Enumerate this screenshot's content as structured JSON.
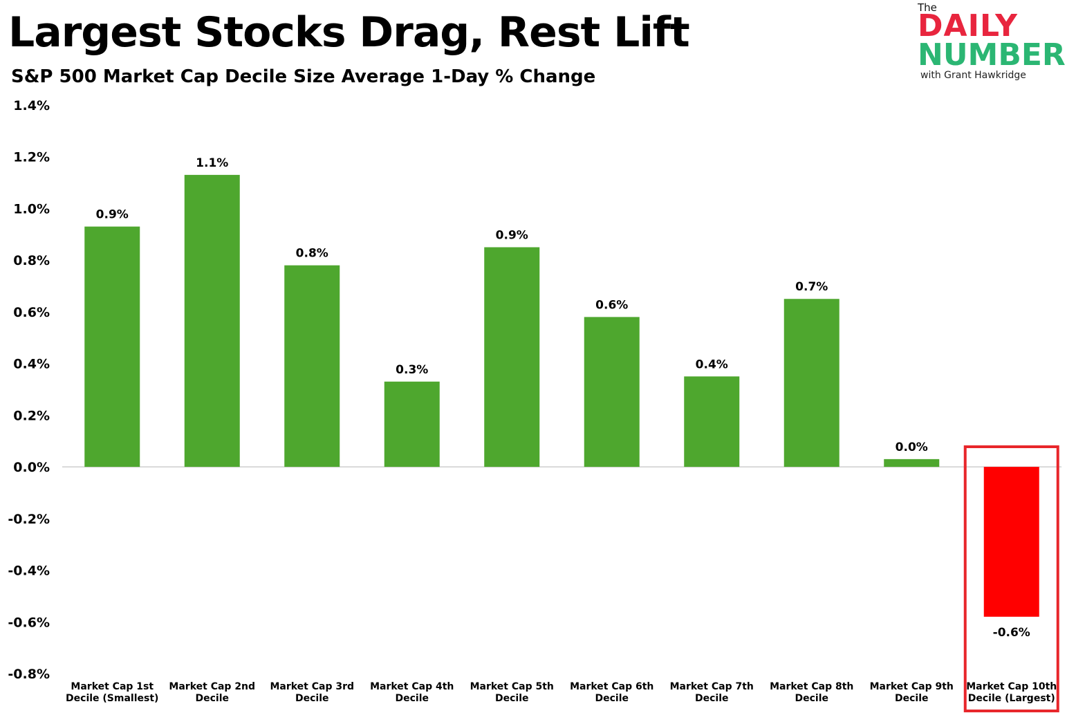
{
  "header": {
    "title": "Largest Stocks Drag, Rest Lift",
    "subtitle": "S&P 500 Market Cap Decile Size Average 1-Day % Change"
  },
  "logo": {
    "the": "The",
    "daily": "DAILY",
    "number": "NUMBER",
    "byline": "with Grant Hawkridge"
  },
  "colors": {
    "positive": "#4ea72e",
    "negative": "#ff0000",
    "highlight_box": "#e8262b",
    "zero_line": "#d9d9d9"
  },
  "chart_data": {
    "type": "bar",
    "title": "S&P 500 Market Cap Decile Size Average 1-Day % Change",
    "xlabel": "",
    "ylabel": "",
    "ylim": [
      -0.8,
      1.4
    ],
    "yticks": [
      "1.4%",
      "1.2%",
      "1.0%",
      "0.8%",
      "0.6%",
      "0.4%",
      "0.2%",
      "0.0%",
      "-0.2%",
      "-0.4%",
      "-0.6%",
      "-0.8%"
    ],
    "ytick_values": [
      1.4,
      1.2,
      1.0,
      0.8,
      0.6,
      0.4,
      0.2,
      0.0,
      -0.2,
      -0.4,
      -0.6,
      -0.8
    ],
    "grid": false,
    "legend": "none",
    "categories": [
      [
        "Market Cap 1st",
        "Decile (Smallest)"
      ],
      [
        "Market Cap 2nd",
        "Decile"
      ],
      [
        "Market Cap 3rd",
        "Decile"
      ],
      [
        "Market Cap 4th",
        "Decile"
      ],
      [
        "Market Cap 5th",
        "Decile"
      ],
      [
        "Market Cap 6th",
        "Decile"
      ],
      [
        "Market Cap 7th",
        "Decile"
      ],
      [
        "Market Cap 8th",
        "Decile"
      ],
      [
        "Market Cap 9th",
        "Decile"
      ],
      [
        "Market Cap 10th",
        "Decile (Largest)"
      ]
    ],
    "values": [
      0.93,
      1.13,
      0.78,
      0.33,
      0.85,
      0.58,
      0.35,
      0.65,
      0.03,
      -0.58
    ],
    "data_labels": [
      "0.9%",
      "1.1%",
      "0.8%",
      "0.3%",
      "0.9%",
      "0.6%",
      "0.4%",
      "0.7%",
      "0.0%",
      "-0.6%"
    ],
    "highlighted_category_index": 9
  }
}
